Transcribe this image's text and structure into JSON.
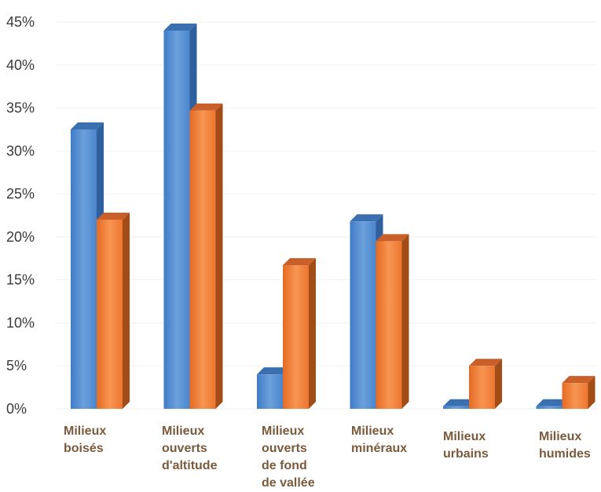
{
  "chart_data": {
    "type": "bar",
    "categories": [
      [
        "Milieux",
        "boisés"
      ],
      [
        "Milieux",
        "ouverts",
        "d'altitude"
      ],
      [
        "Milieux",
        "ouverts",
        "de fond",
        "de vallée"
      ],
      [
        "Milieux",
        "minéraux"
      ],
      [
        "Milieux",
        "urbains"
      ],
      [
        "Milieux",
        "humides"
      ]
    ],
    "series": [
      {
        "values": [
          32.5,
          44,
          4,
          21.8,
          0.3,
          0.3
        ],
        "color": "#4a86cc"
      },
      {
        "values": [
          22,
          34.7,
          16.7,
          19.5,
          5,
          3
        ],
        "color": "#ec7630"
      }
    ],
    "ylim": [
      0,
      45
    ],
    "yticks": [
      "0%",
      "5%",
      "10%",
      "15%",
      "20%",
      "25%",
      "30%",
      "35%",
      "40%",
      "45%"
    ],
    "ytick_values": [
      0,
      5,
      10,
      15,
      20,
      25,
      30,
      35,
      40,
      45
    ],
    "grid": true,
    "style": "3d-column"
  }
}
